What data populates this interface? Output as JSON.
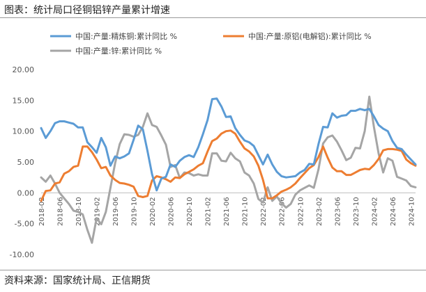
{
  "page": {
    "title": "图表：统计局口径铜铝锌产量累计增速",
    "source": "资料来源：国家统计局、正信期货"
  },
  "chart_data": {
    "type": "line",
    "title": "",
    "xlabel": "",
    "ylabel": "",
    "ylim": [
      -10,
      20
    ],
    "yticks": [
      -10,
      -5,
      0,
      5,
      10,
      15,
      20
    ],
    "ytick_labels": [
      "-10.00",
      "-5.00",
      "0.00",
      "5.00",
      "10.00",
      "15.00",
      "20.00"
    ],
    "x_tick_labels": [
      "2018-02",
      "2018-06",
      "2018-10",
      "2019-02",
      "2019-06",
      "2019-10",
      "2020-02",
      "2020-06",
      "2020-10",
      "2021-02",
      "2021-06",
      "2021-10",
      "2022-02",
      "2022-06",
      "2022-10",
      "2023-02",
      "2023-06",
      "2023-10",
      "2024-02",
      "2024-06",
      "2024-10"
    ],
    "grid": false,
    "legend_position": "top",
    "series": [
      {
        "name": "中国:产量:精炼铜:累计同比 %",
        "color": "#5b9bd5",
        "values": [
          10.5,
          8.9,
          10.0,
          11.3,
          11.6,
          11.6,
          11.4,
          11.2,
          10.6,
          10.6,
          8.2,
          7.4,
          6.5,
          8.9,
          7.4,
          4.4,
          5.9,
          5.6,
          5.9,
          6.4,
          8.6,
          10.9,
          10.3,
          6.8,
          3.0,
          0.4,
          2.3,
          2.6,
          4.6,
          4.2,
          5.2,
          5.8,
          6.1,
          5.8,
          7.4,
          9.5,
          11.8,
          15.2,
          15.3,
          14.0,
          12.3,
          12.4,
          10.5,
          9.4,
          8.5,
          8.2,
          7.6,
          6.1,
          4.6,
          6.2,
          4.6,
          3.4,
          2.7,
          2.5,
          2.6,
          2.7,
          3.3,
          3.7,
          4.7,
          4.6,
          7.9,
          10.7,
          10.6,
          12.9,
          12.2,
          12.5,
          12.6,
          13.3,
          13.3,
          13.6,
          13.4,
          13.6,
          12.4,
          11.0,
          10.4,
          10.0,
          8.4,
          7.3,
          7.1,
          6.2,
          5.4,
          4.6
        ],
        "labels_text": []
      },
      {
        "name": "中国:产量:原铝(电解铝):累计同比 %",
        "color": "#ed7d31",
        "values": [
          -1.3,
          0.3,
          0.4,
          1.5,
          1.7,
          3.1,
          3.5,
          4.2,
          4.4,
          7.5,
          7.5,
          6.6,
          5.4,
          4.0,
          4.2,
          2.8,
          2.1,
          1.6,
          1.5,
          1.3,
          1.0,
          -0.5,
          -0.7,
          -0.5,
          2.0,
          2.7,
          2.5,
          2.2,
          1.8,
          2.5,
          2.4,
          3.0,
          3.4,
          3.8,
          4.4,
          4.8,
          6.7,
          8.4,
          8.8,
          9.6,
          10.0,
          10.1,
          9.6,
          8.3,
          7.2,
          6.7,
          5.9,
          4.4,
          2.1,
          -0.9,
          -0.9,
          -0.4,
          0.2,
          0.5,
          0.9,
          1.5,
          2.4,
          3.2,
          4.0,
          4.5,
          5.8,
          7.5,
          5.7,
          4.1,
          3.5,
          3.5,
          2.9,
          2.9,
          3.3,
          3.7,
          3.9,
          3.8,
          4.5,
          5.5,
          6.9,
          7.1,
          7.1,
          7.0,
          6.8,
          5.4,
          4.8,
          4.4
        ],
        "labels_text": []
      },
      {
        "name": "中国:产量:锌:累计同比 %",
        "color": "#a5a5a5",
        "values": [
          2.5,
          1.8,
          2.8,
          1.5,
          0.0,
          -0.9,
          -1.8,
          -2.9,
          -3.1,
          -3.5,
          -6.0,
          -8.1,
          -4.1,
          -5.1,
          -3.1,
          0.8,
          4.8,
          7.9,
          9.5,
          9.4,
          9.1,
          9.4,
          10.7,
          12.9,
          11.0,
          10.7,
          9.3,
          7.8,
          4.2,
          4.5,
          2.4,
          3.3,
          3.2,
          2.8,
          3.0,
          2.8,
          2.8,
          6.4,
          6.4,
          5.2,
          5.1,
          6.5,
          5.6,
          5.1,
          3.3,
          2.8,
          1.5,
          -1.0,
          -1.6,
          0.9,
          -1.3,
          -0.6,
          -1.7,
          -2.4,
          -1.8,
          -0.3,
          0.4,
          0.8,
          1.2,
          0.8,
          3.8,
          8.0,
          9.0,
          9.3,
          8.3,
          6.9,
          5.3,
          5.7,
          7.3,
          7.2,
          10.0,
          15.6,
          10.7,
          6.4,
          3.3,
          5.6,
          5.2,
          2.6,
          2.3,
          2.0,
          1.1,
          0.9
        ],
        "labels_text": []
      }
    ]
  }
}
